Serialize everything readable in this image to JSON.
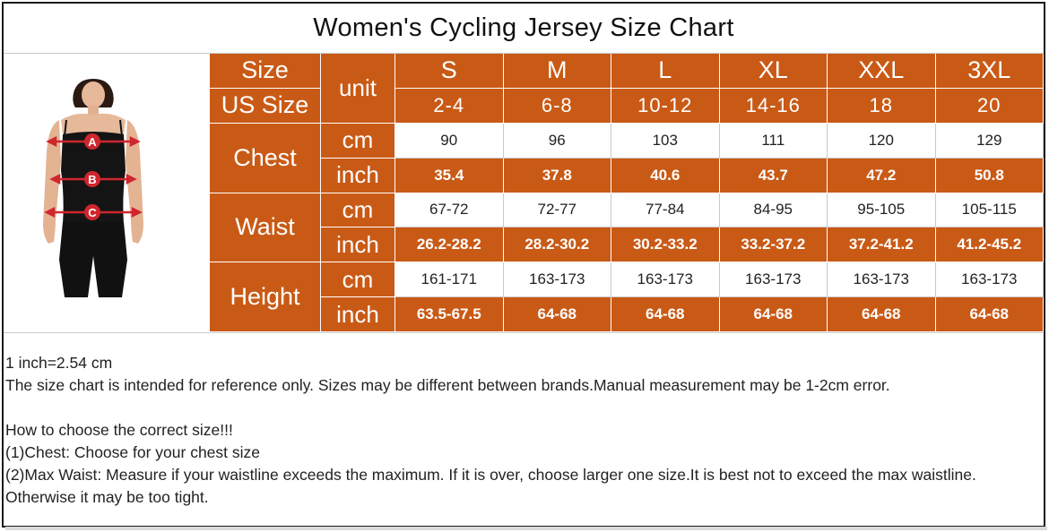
{
  "title": "Women's Cycling Jersey Size Chart",
  "figure": {
    "labels": [
      "A",
      "B",
      "C"
    ]
  },
  "table": {
    "size_label": "Size",
    "us_size_label": "US Size",
    "unit_label": "unit",
    "sizes": [
      "S",
      "M",
      "L",
      "XL",
      "XXL",
      "3XL"
    ],
    "us_sizes": [
      "2-4",
      "6-8",
      "10-12",
      "14-16",
      "18",
      "20"
    ],
    "measurements": [
      {
        "name": "Chest",
        "cm_unit": "cm",
        "cm": [
          "90",
          "96",
          "103",
          "111",
          "120",
          "129"
        ],
        "inch_unit": "inch",
        "inch": [
          "35.4",
          "37.8",
          "40.6",
          "43.7",
          "47.2",
          "50.8"
        ]
      },
      {
        "name": "Waist",
        "cm_unit": "cm",
        "cm": [
          "67-72",
          "72-77",
          "77-84",
          "84-95",
          "95-105",
          "105-115"
        ],
        "inch_unit": "inch",
        "inch": [
          "26.2-28.2",
          "28.2-30.2",
          "30.2-33.2",
          "33.2-37.2",
          "37.2-41.2",
          "41.2-45.2"
        ]
      },
      {
        "name": "Height",
        "cm_unit": "cm",
        "cm": [
          "161-171",
          "163-173",
          "163-173",
          "163-173",
          "163-173",
          "163-173"
        ],
        "inch_unit": "inch",
        "inch": [
          "63.5-67.5",
          "64-68",
          "64-68",
          "64-68",
          "64-68",
          "64-68"
        ]
      }
    ]
  },
  "notes": {
    "conversion": "1 inch=2.54 cm",
    "disclaimer": "The size chart is intended for reference only. Sizes may be different between brands.Manual measurement may be 1-2cm error.",
    "how_to_title": "How to choose the correct size!!!",
    "tip_1": "(1)Chest: Choose for your chest size",
    "tip_2": "(2)Max Waist: Measure if your waistline exceeds the maximum. If it is over, choose larger one size.It is best not to exceed the max waistline.",
    "tip_2b": "Otherwise it may be too tight."
  },
  "colors": {
    "accent": "#c95a16",
    "text": "#222222",
    "marker": "#d0262e"
  }
}
